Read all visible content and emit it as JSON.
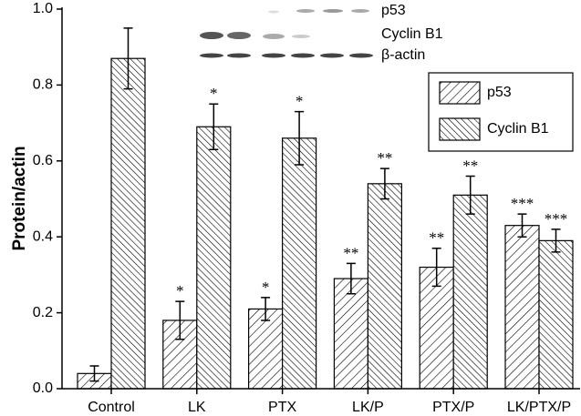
{
  "chart_data": {
    "type": "bar",
    "y_label": "Protein/actin",
    "categories": [
      "Control",
      "LK",
      "PTX",
      "LK/P",
      "PTX/P",
      "LK/PTX/P"
    ],
    "series": [
      {
        "name": "p53",
        "color": "#000000",
        "hatch": "/",
        "values": [
          0.04,
          0.18,
          0.21,
          0.29,
          0.32,
          0.43
        ],
        "errors": [
          0.02,
          0.05,
          0.03,
          0.04,
          0.05,
          0.03
        ],
        "annotations": [
          null,
          "*",
          "*",
          "**",
          "**",
          "***"
        ]
      },
      {
        "name": "Cyclin B1",
        "color": "#000000",
        "hatch": "\\",
        "values": [
          0.87,
          0.69,
          0.66,
          0.54,
          0.51,
          0.39
        ],
        "errors": [
          0.08,
          0.06,
          0.07,
          0.04,
          0.05,
          0.03
        ],
        "annotations": [
          null,
          "*",
          "*",
          "**",
          "**",
          "***"
        ]
      }
    ],
    "ylim": [
      0,
      1
    ],
    "yticks": [
      {
        "value": 0,
        "label": "0.0"
      },
      0.2,
      0.4,
      0.6,
      0.8,
      {
        "value": 1,
        "label": "1.0"
      }
    ],
    "legend": "upper right",
    "blot_labels": [
      "p53",
      "Cyclin B1",
      "β-actin"
    ]
  }
}
